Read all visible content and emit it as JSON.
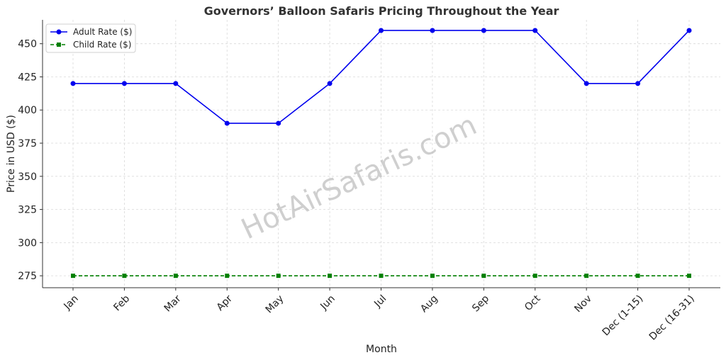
{
  "chart_data": {
    "type": "line",
    "title": "Governors’ Balloon Safaris Pricing Throughout the Year",
    "xlabel": "Month",
    "ylabel": "Price in USD ($)",
    "categories": [
      "Jan",
      "Feb",
      "Mar",
      "Apr",
      "May",
      "Jun",
      "Jul",
      "Aug",
      "Sep",
      "Oct",
      "Nov",
      "Dec (1-15)",
      "Dec (16-31)"
    ],
    "ylim": [
      266,
      468
    ],
    "yticks": [
      275,
      300,
      325,
      350,
      375,
      400,
      425,
      450
    ],
    "grid": true,
    "legend_position": "top-left",
    "series": [
      {
        "name": "Adult Rate ($)",
        "color": "#0000ee",
        "style": "solid",
        "marker": "circle",
        "values": [
          420,
          420,
          420,
          390,
          390,
          420,
          460,
          460,
          460,
          460,
          420,
          420,
          460
        ]
      },
      {
        "name": "Child Rate ($)",
        "color": "#007f00",
        "style": "dashed",
        "marker": "square",
        "values": [
          275,
          275,
          275,
          275,
          275,
          275,
          275,
          275,
          275,
          275,
          275,
          275,
          275
        ]
      }
    ],
    "watermark": "HotAirSafaris.com"
  }
}
